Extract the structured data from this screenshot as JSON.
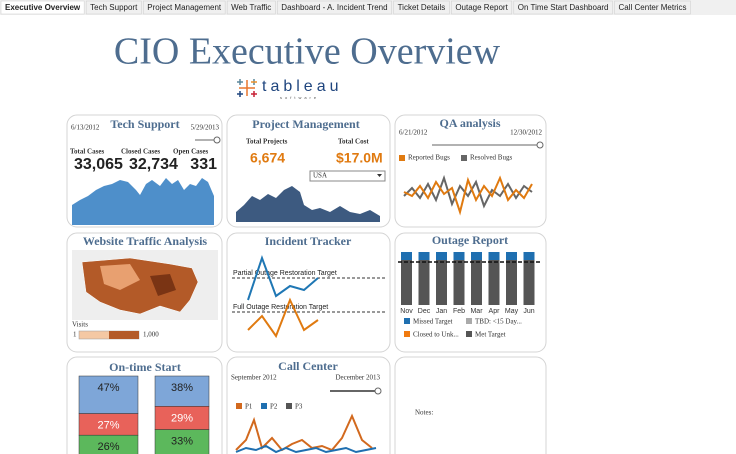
{
  "tabs": [
    "Executive Overview",
    "Tech Support",
    "Project Management",
    "Web Traffic",
    "Dashboard - A. Incident Trend",
    "Ticket Details",
    "Outage Report",
    "On Time Start Dashboard",
    "Call Center Metrics"
  ],
  "header": {
    "title": "CIO Executive Overview",
    "logo": "tableau",
    "logo_sub": "software"
  },
  "tech_support": {
    "title": "Tech Support",
    "start_date": "6/13/2012",
    "end_date": "5/29/2013",
    "labels": [
      "Total Cases",
      "Closed Cases",
      "Open Cases"
    ],
    "values": [
      "33,065",
      "32,734",
      "331"
    ]
  },
  "project_management": {
    "title": "Project Management",
    "labels": [
      "Total Projects",
      "Total Cost"
    ],
    "values": [
      "6,674",
      "$17.0M"
    ],
    "filter": "USA"
  },
  "qa_analysis": {
    "title": "QA analysis",
    "start_date": "6/21/2012",
    "end_date": "12/30/2012",
    "legend": [
      "Reported Bugs",
      "Resolved Bugs"
    ]
  },
  "website_traffic": {
    "title": "Website Traffic Analysis",
    "legend_title": "Visits",
    "legend_min": "1",
    "legend_max": "1,000"
  },
  "incident_tracker": {
    "title": "Incident Tracker",
    "targets": [
      "Partial Outage Restoration Target",
      "Full Outage Restoration Target"
    ]
  },
  "outage_report": {
    "title": "Outage Report",
    "months": [
      "Nov",
      "Dec",
      "Jan",
      "Feb",
      "Mar",
      "Apr",
      "May",
      "Jun"
    ],
    "legend": [
      "Missed Target",
      "TBD: <15 Day...",
      "Closed to Unk...",
      "Met Target"
    ]
  },
  "on_time_start": {
    "title": "On-time Start",
    "columns": [
      {
        "values": [
          47,
          27,
          26
        ],
        "value_labels": [
          "47%",
          "27%",
          "26%"
        ]
      },
      {
        "values": [
          38,
          29,
          33
        ],
        "value_labels": [
          "38%",
          "29%",
          "33%"
        ]
      }
    ],
    "colors": [
      "#7ea6d8",
      "#e8625a",
      "#5cb85c"
    ]
  },
  "call_center": {
    "title": "Call Center",
    "start_date": "September 2012",
    "end_date": "December 2013",
    "legend": [
      "P1",
      "P2",
      "P3"
    ]
  },
  "notes": {
    "label": "Notes:"
  }
}
